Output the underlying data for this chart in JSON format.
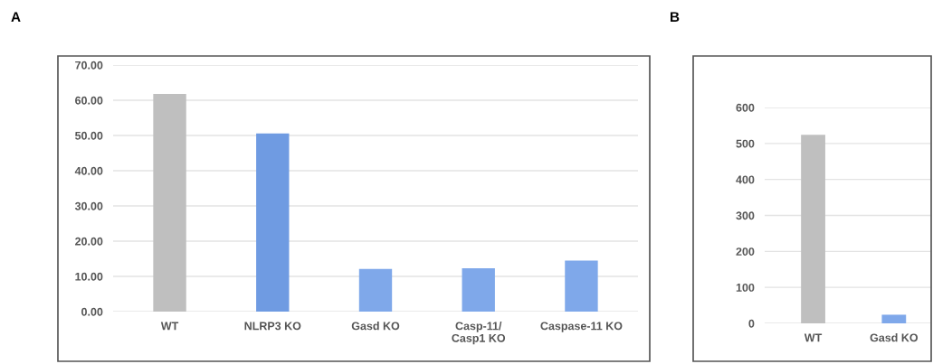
{
  "chart_data": [
    {
      "type": "bar",
      "title": "A",
      "categories": [
        "WT",
        "NLRP3 KO",
        "Gasd KO",
        "Casp-11/\nCasp1 KO",
        "Caspase-11 KO"
      ],
      "values": [
        61.8,
        50.6,
        12.1,
        12.3,
        14.5
      ],
      "colors": [
        "#bfbfbf",
        "#6f9be2",
        "#7fa8ea",
        "#7fa8ea",
        "#7fa8ea"
      ],
      "ylim": [
        0,
        70
      ],
      "yticks": [
        {
          "value": 0,
          "label": "0.00"
        },
        {
          "value": 10,
          "label": "10.00"
        },
        {
          "value": 20,
          "label": "20.00"
        },
        {
          "value": 30,
          "label": "30.00"
        },
        {
          "value": 40,
          "label": "40.00"
        },
        {
          "value": 50,
          "label": "50.00"
        },
        {
          "value": 60,
          "label": "60.00"
        },
        {
          "value": 70,
          "label": "70.00"
        }
      ],
      "grid": "y",
      "legend": false
    },
    {
      "type": "bar",
      "title": "B",
      "categories": [
        "WT",
        "Gasd KO"
      ],
      "values": [
        524,
        24
      ],
      "colors": [
        "#bfbfbf",
        "#7fa8ea"
      ],
      "ylim": [
        0,
        600
      ],
      "yticks": [
        0,
        100,
        200,
        300,
        400,
        500,
        600
      ],
      "grid": "y",
      "legend": false
    }
  ]
}
